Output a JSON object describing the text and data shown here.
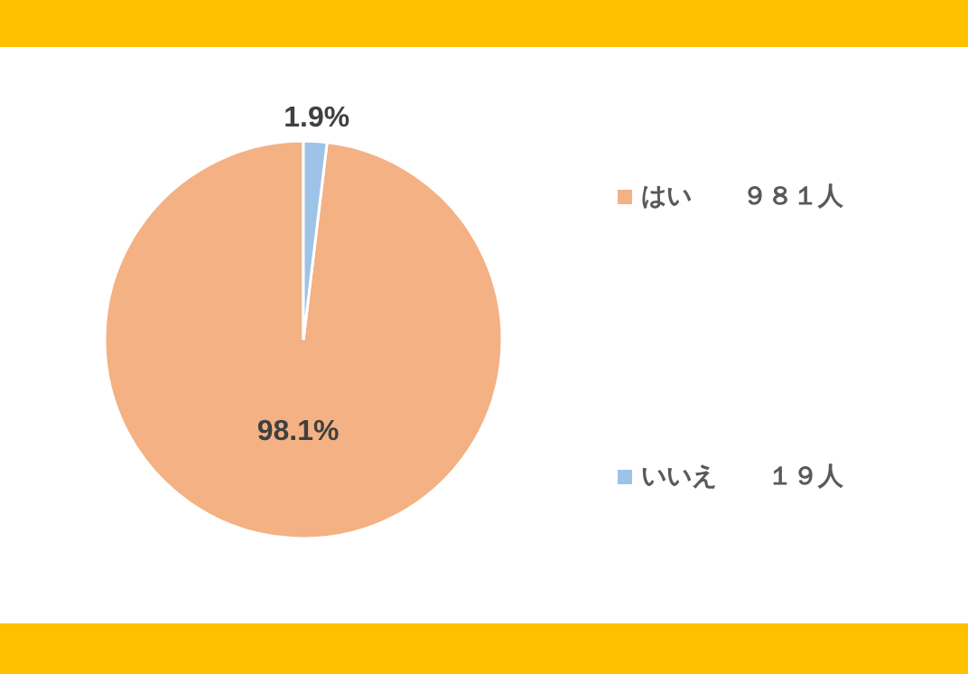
{
  "chart_data": {
    "type": "pie",
    "categories": [
      "はい　　９８１人",
      "いいえ　　１９人"
    ],
    "values": [
      98.1,
      1.9
    ],
    "colors": [
      "#f4b183",
      "#9dc3e6"
    ],
    "value_labels": [
      "98.1%",
      "1.9%"
    ],
    "legend": "right"
  }
}
